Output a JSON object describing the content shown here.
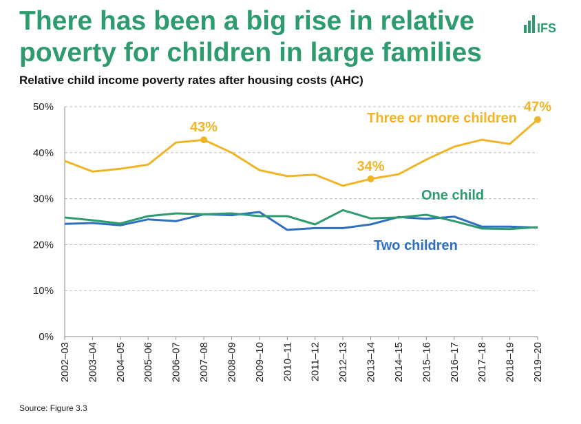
{
  "title": "There has been a big rise in relative poverty for children in large families",
  "subtitle": "Relative child income poverty rates after housing costs (AHC)",
  "logo_text": "IFS",
  "source": "Source: Figure 3.3",
  "colors": {
    "three_plus": "#f0b428",
    "one_child": "#2e9b6e",
    "two_children": "#2f6fbf",
    "title": "#2e9b6e"
  },
  "chart_data": {
    "type": "line",
    "categories": [
      "2002–03",
      "2003–04",
      "2004–05",
      "2005–06",
      "2006–07",
      "2007–08",
      "2008–09",
      "2009–10",
      "2010–11",
      "2011–12",
      "2012–13",
      "2013–14",
      "2014–15",
      "2015–16",
      "2016–17",
      "2017–18",
      "2018–19",
      "2019–20"
    ],
    "yticks": [
      "0%",
      "10%",
      "20%",
      "30%",
      "40%",
      "50%"
    ],
    "ylim": [
      0,
      50
    ],
    "grid": true,
    "series": [
      {
        "name": "Three or more children",
        "color": "#f0b428",
        "values": [
          38.2,
          35.9,
          36.5,
          37.4,
          42.2,
          42.8,
          40.0,
          36.2,
          34.9,
          35.2,
          32.8,
          34.3,
          35.3,
          38.5,
          41.3,
          42.8,
          41.9,
          47.2
        ]
      },
      {
        "name": "One child",
        "color": "#2e9b6e",
        "values": [
          25.9,
          25.3,
          24.6,
          26.2,
          26.8,
          26.6,
          26.8,
          26.2,
          26.2,
          24.4,
          27.5,
          25.7,
          25.9,
          26.5,
          25.1,
          23.5,
          23.4,
          23.8
        ]
      },
      {
        "name": "Two children",
        "color": "#2f6fbf",
        "values": [
          24.5,
          24.7,
          24.2,
          25.5,
          25.1,
          26.6,
          26.4,
          27.1,
          23.2,
          23.6,
          23.6,
          24.4,
          26.0,
          25.6,
          26.1,
          23.9,
          23.9,
          23.7
        ]
      }
    ],
    "annotations": [
      {
        "series": 0,
        "index": 5,
        "label": "43%"
      },
      {
        "series": 0,
        "index": 11,
        "label": "34%"
      },
      {
        "series": 0,
        "index": 17,
        "label": "47%"
      }
    ]
  }
}
